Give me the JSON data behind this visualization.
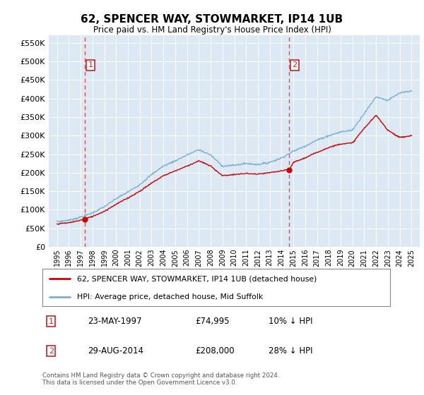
{
  "title": "62, SPENCER WAY, STOWMARKET, IP14 1UB",
  "subtitle": "Price paid vs. HM Land Registry's House Price Index (HPI)",
  "legend_line1": "62, SPENCER WAY, STOWMARKET, IP14 1UB (detached house)",
  "legend_line2": "HPI: Average price, detached house, Mid Suffolk",
  "annotation1": {
    "num": "1",
    "date": "23-MAY-1997",
    "price": "£74,995",
    "note": "10% ↓ HPI"
  },
  "annotation2": {
    "num": "2",
    "date": "29-AUG-2014",
    "price": "£208,000",
    "note": "28% ↓ HPI"
  },
  "footer": "Contains HM Land Registry data © Crown copyright and database right 2024.\nThis data is licensed under the Open Government Licence v3.0.",
  "hpi_color": "#7bafd4",
  "price_color": "#cc0000",
  "background_color": "#dce9f5",
  "vline_color": "#e05050",
  "ylim": [
    0,
    570000
  ],
  "yticks": [
    0,
    50000,
    100000,
    150000,
    200000,
    250000,
    300000,
    350000,
    400000,
    450000,
    500000,
    550000
  ],
  "sale1_year": 1997.38,
  "sale1_price": 74995,
  "sale2_year": 2014.66,
  "sale2_price": 208000,
  "hpi_knots_x": [
    1995,
    1996,
    1997,
    1998,
    1999,
    2000,
    2001,
    2002,
    2003,
    2004,
    2005,
    2006,
    2007,
    2008,
    2009,
    2010,
    2011,
    2012,
    2013,
    2014,
    2015,
    2016,
    2017,
    2018,
    2019,
    2020,
    2021,
    2022,
    2023,
    2024,
    2025
  ],
  "hpi_knots_y": [
    68000,
    72000,
    80000,
    92000,
    108000,
    130000,
    148000,
    168000,
    195000,
    218000,
    232000,
    248000,
    262000,
    248000,
    218000,
    220000,
    225000,
    222000,
    228000,
    240000,
    258000,
    272000,
    288000,
    300000,
    310000,
    315000,
    360000,
    405000,
    395000,
    415000,
    420000
  ],
  "red_knots_x": [
    1995,
    1996,
    1997,
    1998,
    1999,
    2000,
    2001,
    2002,
    2003,
    2004,
    2005,
    2006,
    2007,
    2008,
    2009,
    2010,
    2011,
    2012,
    2013,
    2014,
    2014.66,
    2015,
    2016,
    2017,
    2018,
    2019,
    2020,
    2021,
    2022,
    2023,
    2024,
    2025
  ],
  "red_knots_y": [
    62000,
    65000,
    72000,
    82000,
    96000,
    115000,
    132000,
    150000,
    172000,
    192000,
    205000,
    218000,
    232000,
    218000,
    192000,
    195000,
    198000,
    196000,
    200000,
    205000,
    208000,
    228000,
    240000,
    255000,
    268000,
    278000,
    280000,
    320000,
    355000,
    315000,
    295000,
    300000
  ]
}
